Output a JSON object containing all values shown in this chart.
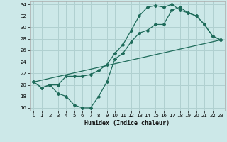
{
  "xlabel": "Humidex (Indice chaleur)",
  "bg_color": "#cce8e8",
  "line_color": "#1e6b5a",
  "grid_color": "#b0d0d0",
  "xlim": [
    -0.5,
    23.5
  ],
  "ylim": [
    15.5,
    34.5
  ],
  "xticks": [
    0,
    1,
    2,
    3,
    4,
    5,
    6,
    7,
    8,
    9,
    10,
    11,
    12,
    13,
    14,
    15,
    16,
    17,
    18,
    19,
    20,
    21,
    22,
    23
  ],
  "yticks": [
    16,
    18,
    20,
    22,
    24,
    26,
    28,
    30,
    32,
    34
  ],
  "line1_x": [
    0,
    1,
    2,
    3,
    4,
    5,
    6,
    7,
    8,
    9,
    10,
    11,
    12,
    13,
    14,
    15,
    16,
    17,
    18,
    19,
    20,
    21,
    22,
    23
  ],
  "line1_y": [
    20.5,
    19.5,
    20.0,
    20.0,
    21.5,
    21.5,
    21.5,
    21.8,
    22.5,
    23.5,
    25.5,
    27.0,
    29.5,
    32.0,
    33.5,
    33.8,
    33.5,
    34.0,
    33.0,
    32.5,
    32.0,
    30.5,
    28.5,
    27.8
  ],
  "line2_x": [
    0,
    1,
    2,
    3,
    4,
    5,
    6,
    7,
    8,
    9,
    10,
    11,
    12,
    13,
    14,
    15,
    16,
    17,
    18,
    19,
    20,
    21,
    22,
    23
  ],
  "line2_y": [
    20.5,
    19.5,
    20.0,
    18.5,
    18.0,
    16.5,
    16.0,
    16.0,
    18.0,
    20.5,
    24.5,
    25.5,
    27.5,
    29.0,
    29.5,
    30.5,
    30.5,
    33.0,
    33.5,
    32.5,
    32.0,
    30.5,
    28.5,
    27.8
  ],
  "line3_x": [
    0,
    23
  ],
  "line3_y": [
    20.5,
    27.8
  ]
}
